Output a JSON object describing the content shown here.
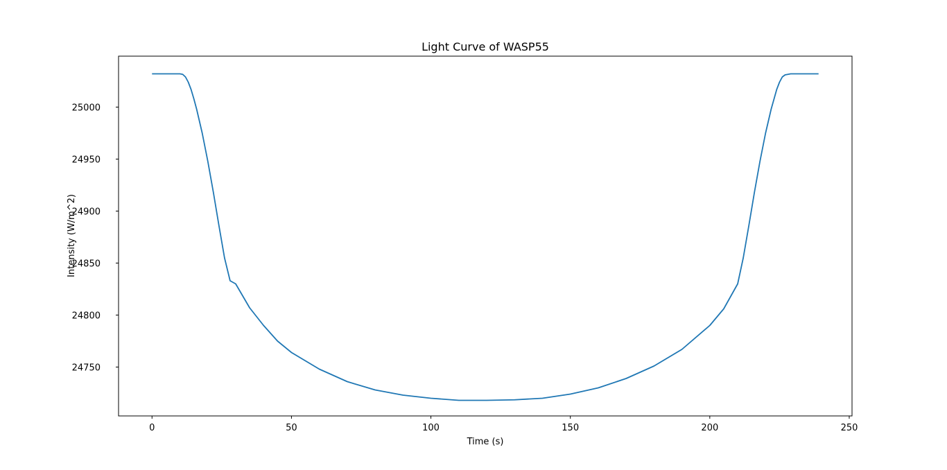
{
  "chart_data": {
    "type": "line",
    "title": "Light Curve of WASP55",
    "xlabel": "Time (s)",
    "ylabel": "Intensity (W/m^2)",
    "xlim": [
      -12,
      251
    ],
    "ylim": [
      24703,
      25049
    ],
    "xticks": [
      0,
      50,
      100,
      150,
      200,
      250
    ],
    "yticks": [
      24750,
      24800,
      24850,
      24900,
      24950,
      25000
    ],
    "grid": false,
    "series": [
      {
        "color": "#1f77b4",
        "x": [
          0,
          5,
          10,
          11,
          12,
          13,
          14,
          15,
          16,
          18,
          20,
          22,
          24,
          26,
          28,
          30,
          35,
          40,
          45,
          50,
          60,
          70,
          80,
          90,
          100,
          110,
          120,
          130,
          140,
          150,
          160,
          170,
          180,
          190,
          200,
          205,
          210,
          212,
          214,
          216,
          218,
          220,
          222,
          224,
          225,
          226,
          227,
          228,
          229,
          230,
          235,
          239
        ],
        "y": [
          25032,
          25032,
          25032,
          25031.5,
          25029,
          25024,
          25017,
          25008,
          24998,
          24975,
          24948,
          24918,
          24886,
          24855,
          24833,
          24830,
          24807,
          24790,
          24775,
          24764,
          24748,
          24736,
          24728,
          24723,
          24720,
          24718,
          24718,
          24718.5,
          24720,
          24724,
          24730,
          24739,
          24751,
          24767,
          24790,
          24806,
          24830,
          24855,
          24886,
          24918,
          24948,
          24975,
          24998,
          25017,
          25024,
          25029,
          25031,
          25031.5,
          25032,
          25032,
          25032,
          25032
        ]
      }
    ]
  }
}
